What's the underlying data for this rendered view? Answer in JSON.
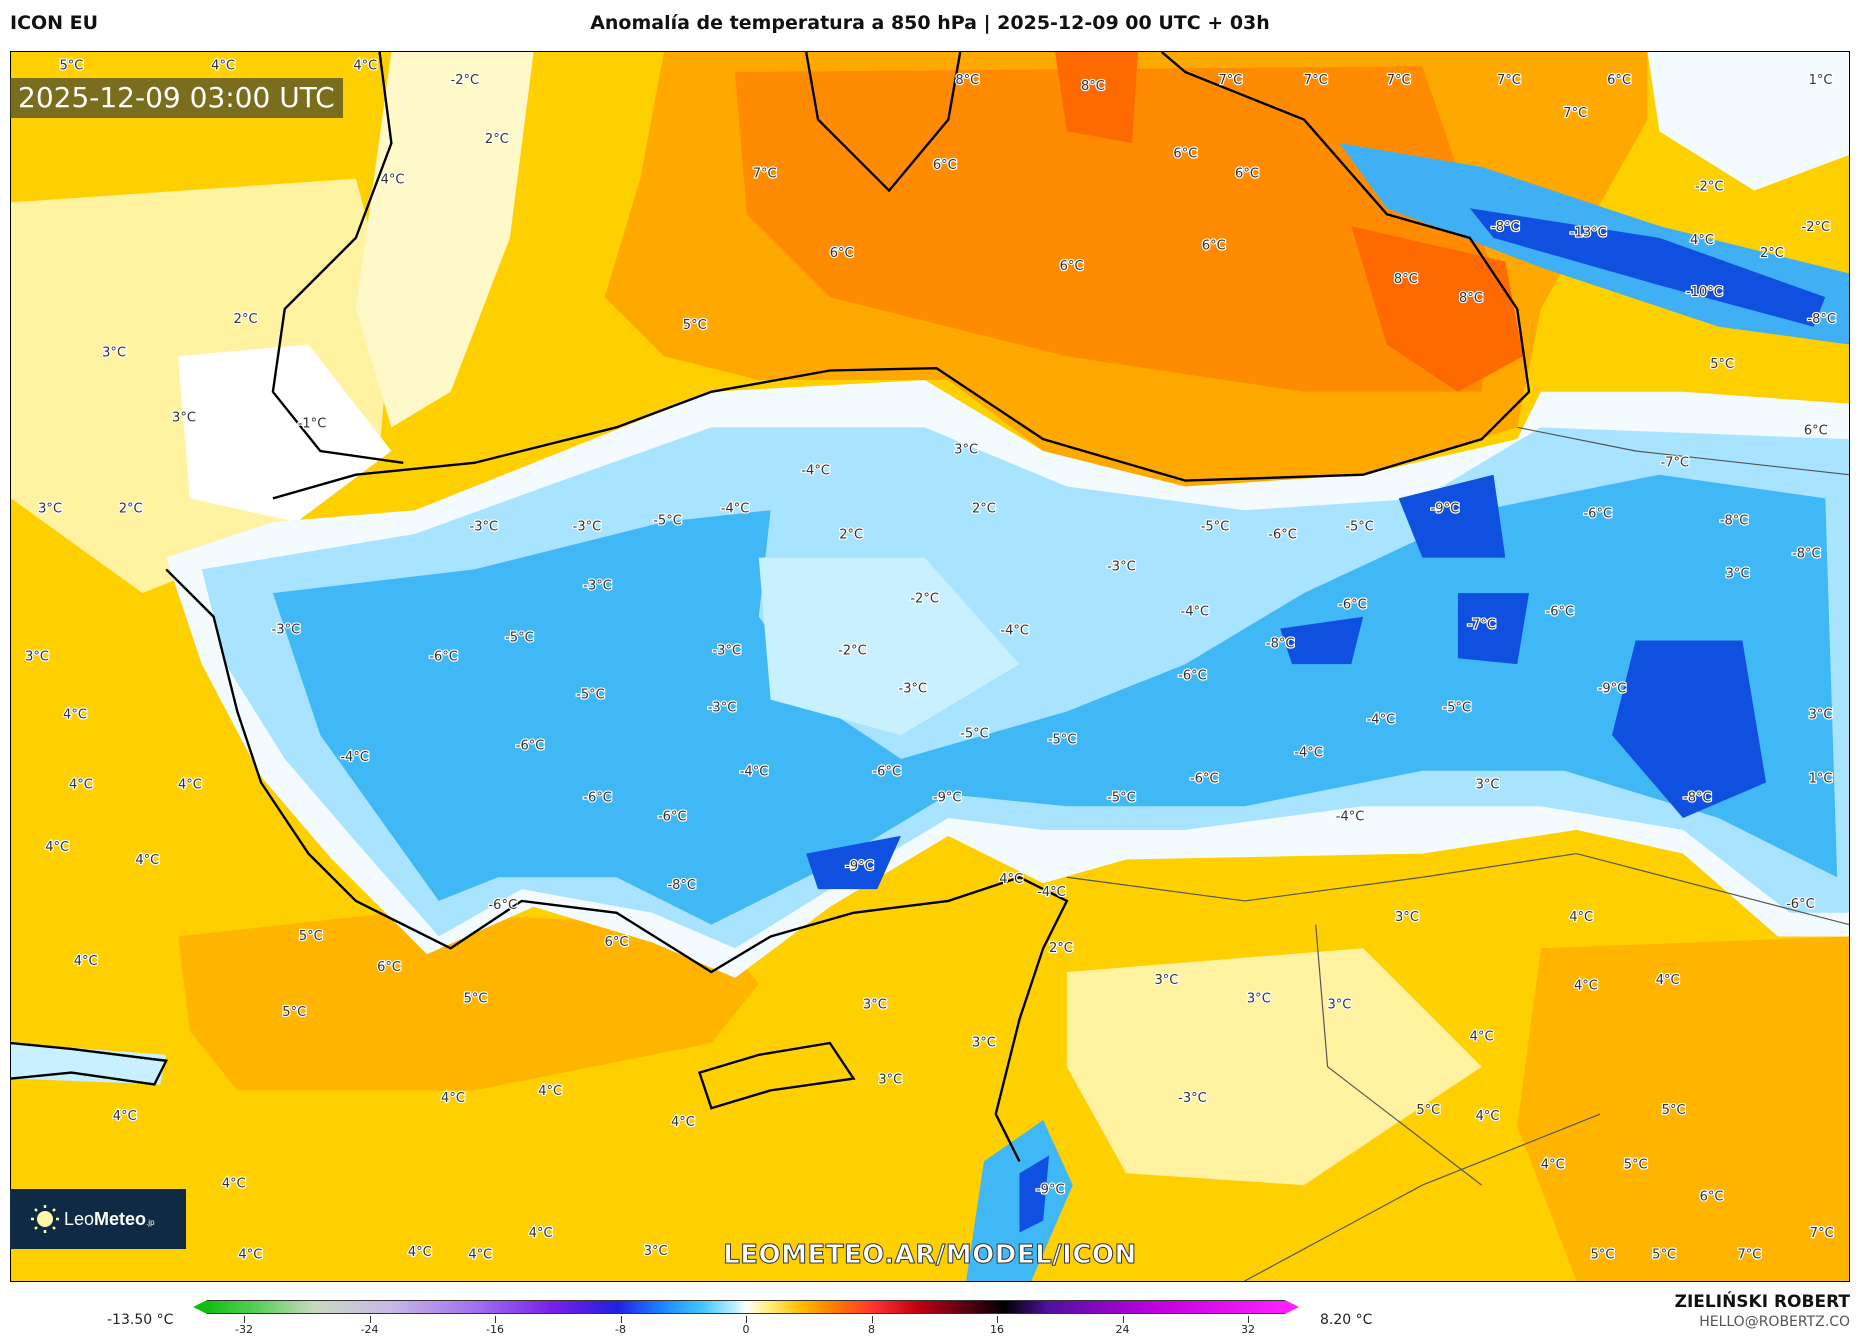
{
  "header": {
    "model": "ICON EU",
    "title": "Anomalía de temperatura a 850 hPa | 2025-12-09 00 UTC + 03h"
  },
  "map": {
    "valid_time": "2025-12-09 03:00 UTC",
    "watermark": "LEOMETEO.AR/MODEL/ICON",
    "logo": {
      "text_light": "Leo",
      "text_bold": "Meteo",
      "suffix": ".jp",
      "icon": "sun-icon"
    },
    "colors": {
      "warm_yellow": "#ffd000",
      "orange": "#ffa000",
      "dark_orange": "#ff7000",
      "light_blue": "#a8e4ff",
      "blue": "#40b8f5",
      "dark_blue": "#1050e0"
    },
    "contour_labels": [
      "5°C",
      "4°C",
      "4°C",
      "-2°C",
      "8°C",
      "8°C",
      "7°C",
      "7°C",
      "7°C",
      "7°C",
      "6°C",
      "1°C",
      "2°C",
      "7°C",
      "4°C",
      "7°C",
      "6°C",
      "6°C",
      "6°C",
      "-2°C",
      "6°C",
      "6°C",
      "6°C",
      "-8°C",
      "-13°C",
      "4°C",
      "2°C",
      "-2°C",
      "8°C",
      "8°C",
      "-10°C",
      "-8°C",
      "2°C",
      "5°C",
      "3°C",
      "5°C",
      "3°C",
      "-1°C",
      "3°C",
      "6°C",
      "-4°C",
      "-7°C",
      "3°C",
      "2°C",
      "2°C",
      "-3°C",
      "-3°C",
      "-5°C",
      "-4°C",
      "-9°C",
      "-6°C",
      "-8°C",
      "2°C",
      "-5°C",
      "-6°C",
      "-5°C",
      "-8°C",
      "-3°C",
      "3°C",
      "-3°C",
      "-2°C",
      "-4°C",
      "-6°C",
      "-7°C",
      "-6°C",
      "-3°C",
      "-5°C",
      "-4°C",
      "-8°C",
      "3°C",
      "-6°C",
      "-3°C",
      "-2°C",
      "-3°C",
      "-6°C",
      "-9°C",
      "-5°C",
      "-3°C",
      "-5°C",
      "-4°C",
      "3°C",
      "4°C",
      "-5°C",
      "-5°C",
      "-4°C",
      "-6°C",
      "-4°C",
      "-4°C",
      "-6°C",
      "-6°C",
      "1°C",
      "4°C",
      "4°C",
      "3°C",
      "-9°C",
      "-6°C",
      "-5°C",
      "-8°C",
      "-6°C",
      "-4°C",
      "4°C",
      "4°C",
      "-9°C",
      "4°C",
      "-4°C",
      "-8°C",
      "-6°C",
      "-6°C",
      "3°C",
      "4°C",
      "5°C",
      "6°C",
      "2°C",
      "6°C",
      "4°C",
      "5°C",
      "3°C",
      "4°C",
      "4°C",
      "3°C",
      "3°C",
      "3°C",
      "5°C",
      "3°C",
      "4°C",
      "3°C",
      "4°C",
      "4°C",
      "-3°C",
      "4°C",
      "4°C",
      "5°C",
      "4°C",
      "5°C",
      "4°C",
      "5°C",
      "4°C",
      "-9°C",
      "6°C",
      "7°C",
      "4°C",
      "4°C",
      "4°C",
      "4°C",
      "3°C",
      "5°C",
      "5°C",
      "7°C"
    ]
  },
  "colorbar": {
    "min_label": "-13.50 °C",
    "max_label": "8.20 °C",
    "ticks": [
      "-32",
      "-24",
      "-16",
      "-8",
      "0",
      "8",
      "16",
      "24",
      "32"
    ],
    "range": [
      -32,
      32
    ]
  },
  "author": {
    "name": "ZIELIŃSKI ROBERT",
    "email": "HELLO@ROBERTZ.CO"
  }
}
